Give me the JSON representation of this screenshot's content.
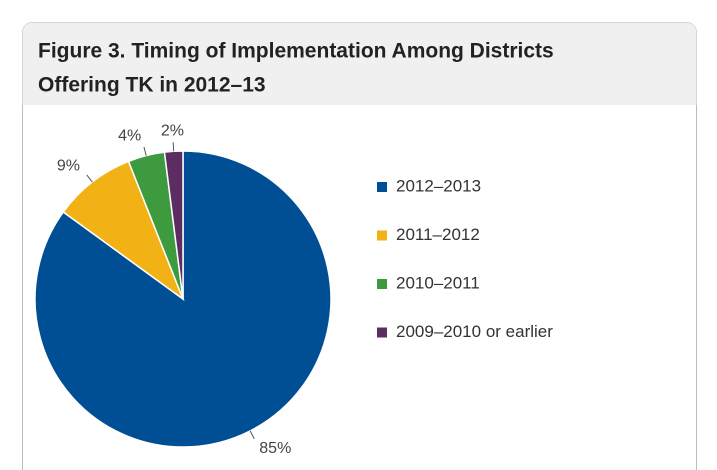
{
  "chart_data": {
    "type": "pie",
    "title": [
      "Figure 3. Timing of Implementation Among Districts",
      "Offering TK in 2012–13"
    ],
    "categories": [
      "2012–2013",
      "2011–2012",
      "2010–2011",
      "2009–2010 or earlier"
    ],
    "values": [
      85,
      9,
      4,
      2
    ],
    "value_labels": [
      "85%",
      "9%",
      "4%",
      "2%"
    ],
    "colors": [
      "#004f95",
      "#f2b115",
      "#3d9a3f",
      "#5c2d63"
    ],
    "legend": "right"
  }
}
